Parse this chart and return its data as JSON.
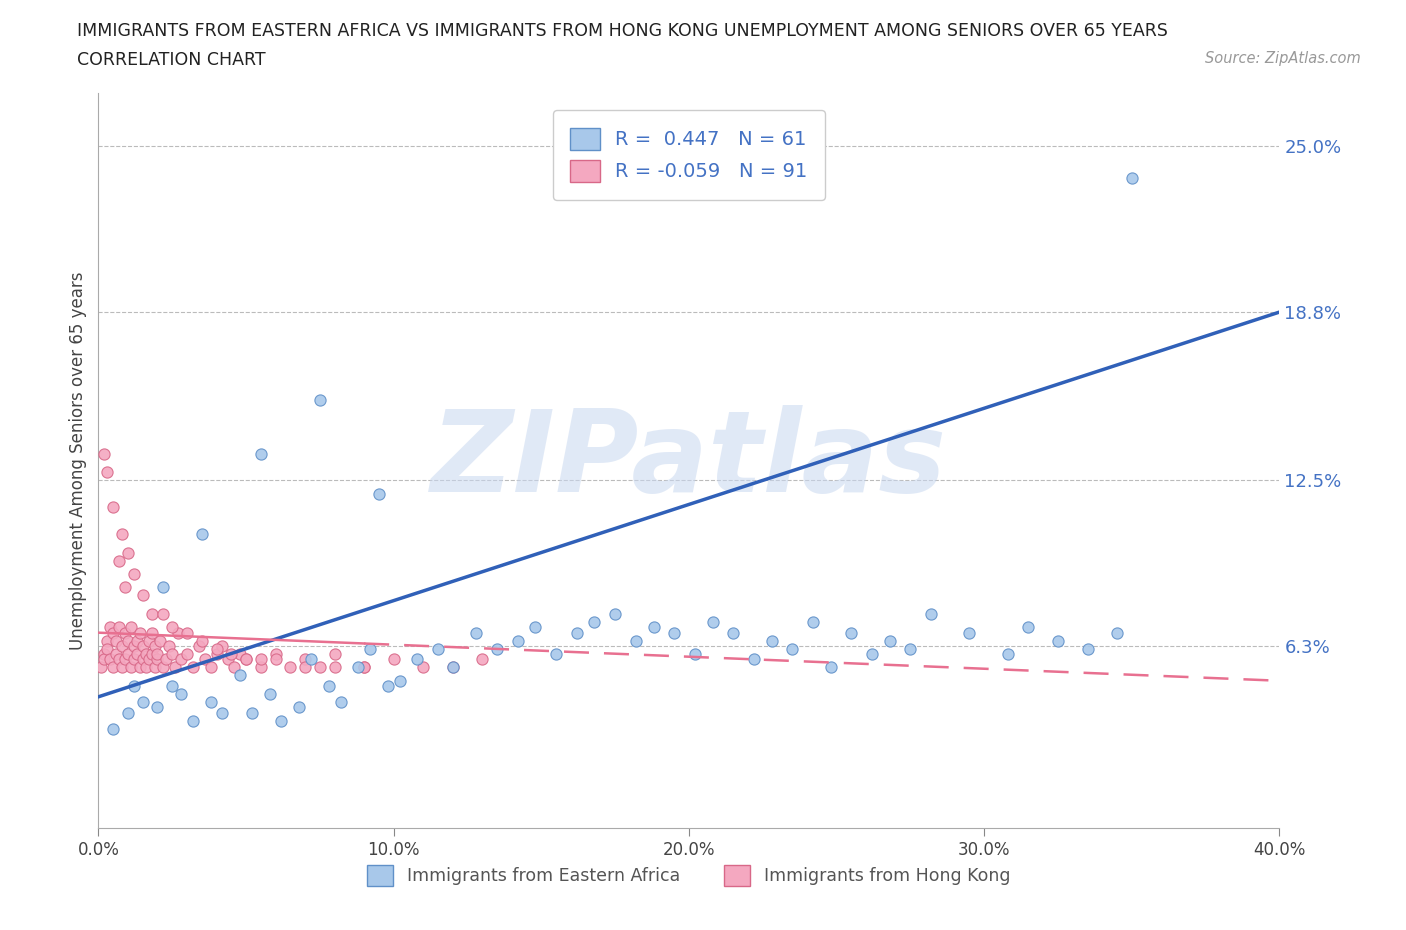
{
  "title_line1": "IMMIGRANTS FROM EASTERN AFRICA VS IMMIGRANTS FROM HONG KONG UNEMPLOYMENT AMONG SENIORS OVER 65 YEARS",
  "title_line2": "CORRELATION CHART",
  "source_text": "Source: ZipAtlas.com",
  "ylabel": "Unemployment Among Seniors over 65 years",
  "xlim": [
    0.0,
    0.4
  ],
  "ylim": [
    -0.005,
    0.27
  ],
  "yticks": [
    0.063,
    0.125,
    0.188,
    0.25
  ],
  "ytick_labels": [
    "6.3%",
    "12.5%",
    "18.8%",
    "25.0%"
  ],
  "xticks": [
    0.0,
    0.1,
    0.2,
    0.3,
    0.4
  ],
  "xtick_labels": [
    "0.0%",
    "10.0%",
    "20.0%",
    "30.0%",
    "40.0%"
  ],
  "series1_color": "#A8C8EA",
  "series1_edge": "#6090C8",
  "series2_color": "#F4A8C0",
  "series2_edge": "#D86888",
  "line1_color": "#3060B8",
  "line2_color": "#E87090",
  "R1": 0.447,
  "N1": 61,
  "R2": -0.059,
  "N2": 91,
  "legend_label1": "Immigrants from Eastern Africa",
  "legend_label2": "Immigrants from Hong Kong",
  "watermark": "ZIPatlas",
  "watermark_color": "#C8D8F0",
  "grid_color": "#BBBBBB",
  "series1_x": [
    0.005,
    0.01,
    0.015,
    0.02,
    0.025,
    0.028,
    0.032,
    0.038,
    0.042,
    0.048,
    0.052,
    0.058,
    0.062,
    0.068,
    0.072,
    0.078,
    0.082,
    0.088,
    0.092,
    0.098,
    0.102,
    0.108,
    0.115,
    0.12,
    0.128,
    0.135,
    0.142,
    0.148,
    0.155,
    0.162,
    0.168,
    0.175,
    0.182,
    0.188,
    0.195,
    0.202,
    0.208,
    0.215,
    0.222,
    0.228,
    0.235,
    0.242,
    0.248,
    0.255,
    0.262,
    0.268,
    0.275,
    0.282,
    0.295,
    0.308,
    0.315,
    0.325,
    0.335,
    0.345,
    0.012,
    0.022,
    0.035,
    0.055,
    0.075,
    0.095,
    0.35
  ],
  "series1_y": [
    0.032,
    0.038,
    0.042,
    0.04,
    0.048,
    0.045,
    0.035,
    0.042,
    0.038,
    0.052,
    0.038,
    0.045,
    0.035,
    0.04,
    0.058,
    0.048,
    0.042,
    0.055,
    0.062,
    0.048,
    0.05,
    0.058,
    0.062,
    0.055,
    0.068,
    0.062,
    0.065,
    0.07,
    0.06,
    0.068,
    0.072,
    0.075,
    0.065,
    0.07,
    0.068,
    0.06,
    0.072,
    0.068,
    0.058,
    0.065,
    0.062,
    0.072,
    0.055,
    0.068,
    0.06,
    0.065,
    0.062,
    0.075,
    0.068,
    0.06,
    0.07,
    0.065,
    0.062,
    0.068,
    0.048,
    0.085,
    0.105,
    0.135,
    0.155,
    0.12,
    0.238
  ],
  "series2_x": [
    0.001,
    0.002,
    0.002,
    0.003,
    0.003,
    0.004,
    0.004,
    0.005,
    0.005,
    0.006,
    0.006,
    0.007,
    0.007,
    0.008,
    0.008,
    0.009,
    0.009,
    0.01,
    0.01,
    0.011,
    0.011,
    0.012,
    0.012,
    0.013,
    0.013,
    0.014,
    0.014,
    0.015,
    0.015,
    0.016,
    0.016,
    0.017,
    0.017,
    0.018,
    0.018,
    0.019,
    0.019,
    0.02,
    0.02,
    0.021,
    0.022,
    0.023,
    0.024,
    0.025,
    0.026,
    0.027,
    0.028,
    0.03,
    0.032,
    0.034,
    0.036,
    0.038,
    0.04,
    0.042,
    0.044,
    0.046,
    0.048,
    0.05,
    0.055,
    0.06,
    0.065,
    0.07,
    0.075,
    0.08,
    0.09,
    0.1,
    0.11,
    0.12,
    0.13,
    0.008,
    0.01,
    0.012,
    0.015,
    0.018,
    0.022,
    0.025,
    0.03,
    0.035,
    0.04,
    0.045,
    0.05,
    0.055,
    0.06,
    0.07,
    0.08,
    0.09,
    0.003,
    0.005,
    0.007,
    0.009,
    0.002
  ],
  "series2_y": [
    0.055,
    0.06,
    0.058,
    0.065,
    0.062,
    0.07,
    0.058,
    0.055,
    0.068,
    0.06,
    0.065,
    0.058,
    0.07,
    0.055,
    0.063,
    0.068,
    0.058,
    0.06,
    0.065,
    0.055,
    0.07,
    0.058,
    0.063,
    0.06,
    0.065,
    0.055,
    0.068,
    0.058,
    0.063,
    0.06,
    0.055,
    0.065,
    0.058,
    0.06,
    0.068,
    0.055,
    0.063,
    0.058,
    0.06,
    0.065,
    0.055,
    0.058,
    0.063,
    0.06,
    0.055,
    0.068,
    0.058,
    0.06,
    0.055,
    0.063,
    0.058,
    0.055,
    0.06,
    0.063,
    0.058,
    0.055,
    0.06,
    0.058,
    0.055,
    0.06,
    0.055,
    0.058,
    0.055,
    0.06,
    0.055,
    0.058,
    0.055,
    0.055,
    0.058,
    0.105,
    0.098,
    0.09,
    0.082,
    0.075,
    0.075,
    0.07,
    0.068,
    0.065,
    0.062,
    0.06,
    0.058,
    0.058,
    0.058,
    0.055,
    0.055,
    0.055,
    0.128,
    0.115,
    0.095,
    0.085,
    0.135
  ],
  "line1_x0": 0.0,
  "line1_y0": 0.044,
  "line1_x1": 0.4,
  "line1_y1": 0.188,
  "line2_x0": 0.0,
  "line2_y0": 0.068,
  "line2_x1": 0.4,
  "line2_y1": 0.05
}
